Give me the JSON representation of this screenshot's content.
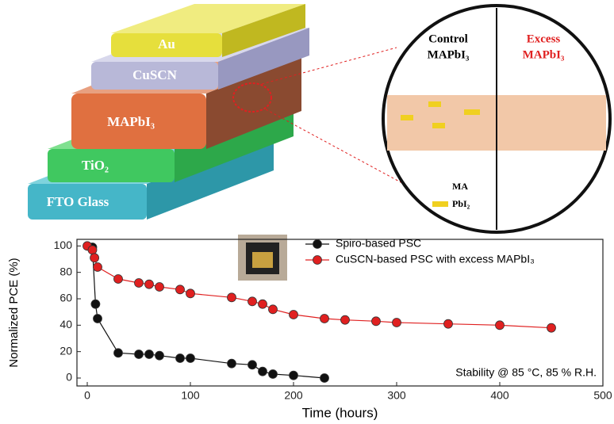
{
  "diagram": {
    "layers": [
      "Au",
      "CuSCN",
      "MAPbI₃",
      "TiO₂",
      "FTO Glass"
    ],
    "inset": {
      "left_title": [
        "Control",
        "MAPbI₃"
      ],
      "right_title": [
        "Excess",
        "MAPbI₃"
      ],
      "legend": [
        "MA",
        "PbI₂"
      ]
    }
  },
  "chart_data": {
    "type": "line",
    "xlabel": "Time (hours)",
    "ylabel": "Normalized PCE (%)",
    "annotation": "Stability @ 85 °C, 85 % R.H.",
    "xlim": [
      -10,
      500
    ],
    "ylim": [
      -6,
      105
    ],
    "xticks": [
      0,
      100,
      200,
      300,
      400,
      500
    ],
    "yticks": [
      0,
      20,
      40,
      60,
      80,
      100
    ],
    "legend": "upper right",
    "series": [
      {
        "name": "Spiro-based PSC",
        "color": "#111111",
        "x": [
          5,
          8,
          10,
          30,
          50,
          60,
          70,
          90,
          100,
          140,
          160,
          170,
          180,
          200,
          230
        ],
        "values": [
          99,
          56,
          45,
          19,
          18,
          18,
          17,
          15,
          15,
          11,
          10,
          5,
          3,
          2,
          0
        ]
      },
      {
        "name": "CuSCN-based PSC with excess MAPbI₃",
        "color": "#e02020",
        "x": [
          0,
          5,
          7,
          10,
          30,
          50,
          60,
          70,
          90,
          100,
          140,
          160,
          170,
          180,
          200,
          230,
          250,
          280,
          300,
          350,
          400,
          450
        ],
        "values": [
          100,
          97,
          91,
          84,
          75,
          72,
          71,
          69,
          67,
          64,
          61,
          58,
          56,
          52,
          48,
          45,
          44,
          43,
          42,
          41,
          40,
          38
        ]
      }
    ]
  }
}
